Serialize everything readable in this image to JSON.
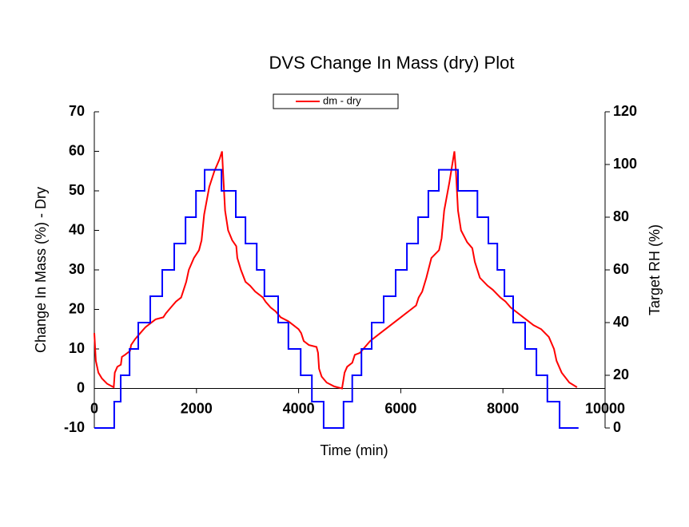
{
  "chart_data": {
    "type": "line",
    "title": "DVS Change In Mass (dry) Plot",
    "x_label": "Time (min)",
    "y_label": "Change In Mass (%) - Dry",
    "y2_label": "Target RH (%)",
    "xlim": [
      0,
      10000
    ],
    "xticks": [
      0,
      2000,
      4000,
      6000,
      8000,
      10000
    ],
    "ylim": [
      -10,
      70
    ],
    "yticks": [
      -10,
      0,
      10,
      20,
      30,
      40,
      50,
      60,
      70
    ],
    "y2lim": [
      0,
      120
    ],
    "y2ticks": [
      0,
      20,
      40,
      60,
      80,
      100,
      120
    ],
    "legend": "top",
    "series": [
      {
        "name": "dm - dry",
        "color": "#ff0000",
        "x": [
          0,
          30,
          80,
          150,
          250,
          380,
          400,
          450,
          520,
          540,
          600,
          700,
          720,
          800,
          900,
          1000,
          1100,
          1200,
          1350,
          1400,
          1500,
          1600,
          1700,
          1750,
          1800,
          1850,
          1950,
          2050,
          2100,
          2150,
          2250,
          2350,
          2450,
          2500,
          2520,
          2560,
          2620,
          2700,
          2780,
          2800,
          2870,
          2960,
          3050,
          3150,
          3300,
          3350,
          3450,
          3550,
          3650,
          3800,
          3900,
          4000,
          4050,
          4100,
          4200,
          4350,
          4380,
          4400,
          4450,
          4550,
          4700,
          4850,
          4900,
          4950,
          5050,
          5100,
          5200,
          5300,
          5400,
          5600,
          5800,
          6000,
          6150,
          6300,
          6350,
          6420,
          6500,
          6600,
          6750,
          6800,
          6850,
          6950,
          7000,
          7050,
          7080,
          7120,
          7180,
          7300,
          7400,
          7450,
          7550,
          7700,
          7800,
          7950,
          8050,
          8150,
          8300,
          8450,
          8600,
          8750,
          8900,
          9000,
          9050,
          9150,
          9300,
          9450
        ],
        "values": [
          14,
          7,
          4,
          2.5,
          1.2,
          0.3,
          4,
          5.5,
          6,
          8,
          8.5,
          9.5,
          11,
          12.5,
          14,
          15.5,
          16.5,
          17.5,
          18,
          19,
          20.5,
          22,
          23,
          25,
          27,
          30,
          33,
          35,
          37.5,
          44,
          51,
          55,
          58,
          60,
          55,
          45,
          40,
          37.5,
          36,
          33,
          30,
          27,
          26,
          24.5,
          23,
          22,
          20.5,
          19.5,
          18,
          17,
          16,
          15,
          14,
          12,
          11,
          10.5,
          9,
          5,
          3,
          1.5,
          0.5,
          0,
          4,
          5.5,
          6.5,
          8.5,
          9,
          10.5,
          12,
          14,
          16,
          18,
          19.5,
          21,
          23,
          24.5,
          28,
          33,
          35,
          38,
          45,
          52,
          56,
          60,
          55,
          45,
          40,
          37,
          35.5,
          32,
          28,
          26,
          25,
          23,
          22,
          20.5,
          19,
          17.5,
          16,
          15,
          13,
          10,
          7,
          4,
          1.5,
          0.3
        ]
      },
      {
        "color": "#0000ff",
        "axis": "y2",
        "x": [
          0,
          390,
          390,
          516,
          516,
          690,
          690,
          860,
          860,
          1095,
          1095,
          1330,
          1330,
          1565,
          1565,
          1785,
          1785,
          1990,
          1990,
          2160,
          2160,
          2490,
          2490,
          2770,
          2770,
          2960,
          2960,
          3180,
          3180,
          3330,
          3330,
          3600,
          3600,
          3800,
          3800,
          4040,
          4040,
          4260,
          4260,
          4490,
          4490,
          4880,
          4880,
          5050,
          5050,
          5230,
          5230,
          5430,
          5430,
          5665,
          5665,
          5900,
          5900,
          6120,
          6120,
          6340,
          6340,
          6540,
          6540,
          6745,
          6745,
          7120,
          7120,
          7500,
          7500,
          7715,
          7715,
          7890,
          7890,
          8030,
          8030,
          8200,
          8200,
          8435,
          8435,
          8655,
          8655,
          8870,
          8870,
          9110,
          9110,
          9480
        ],
        "values": [
          0,
          0,
          10,
          10,
          20,
          20,
          30,
          30,
          40,
          40,
          50,
          50,
          60,
          60,
          70,
          70,
          80,
          80,
          90,
          90,
          98,
          98,
          90,
          90,
          80,
          80,
          70,
          70,
          60,
          60,
          50,
          50,
          40,
          40,
          30,
          30,
          20,
          20,
          10,
          10,
          0,
          0,
          10,
          10,
          20,
          20,
          30,
          30,
          40,
          40,
          50,
          50,
          60,
          60,
          70,
          70,
          80,
          80,
          90,
          90,
          98,
          98,
          90,
          90,
          80,
          80,
          70,
          70,
          60,
          60,
          50,
          50,
          40,
          40,
          30,
          30,
          20,
          20,
          10,
          10,
          0,
          0
        ]
      }
    ]
  }
}
